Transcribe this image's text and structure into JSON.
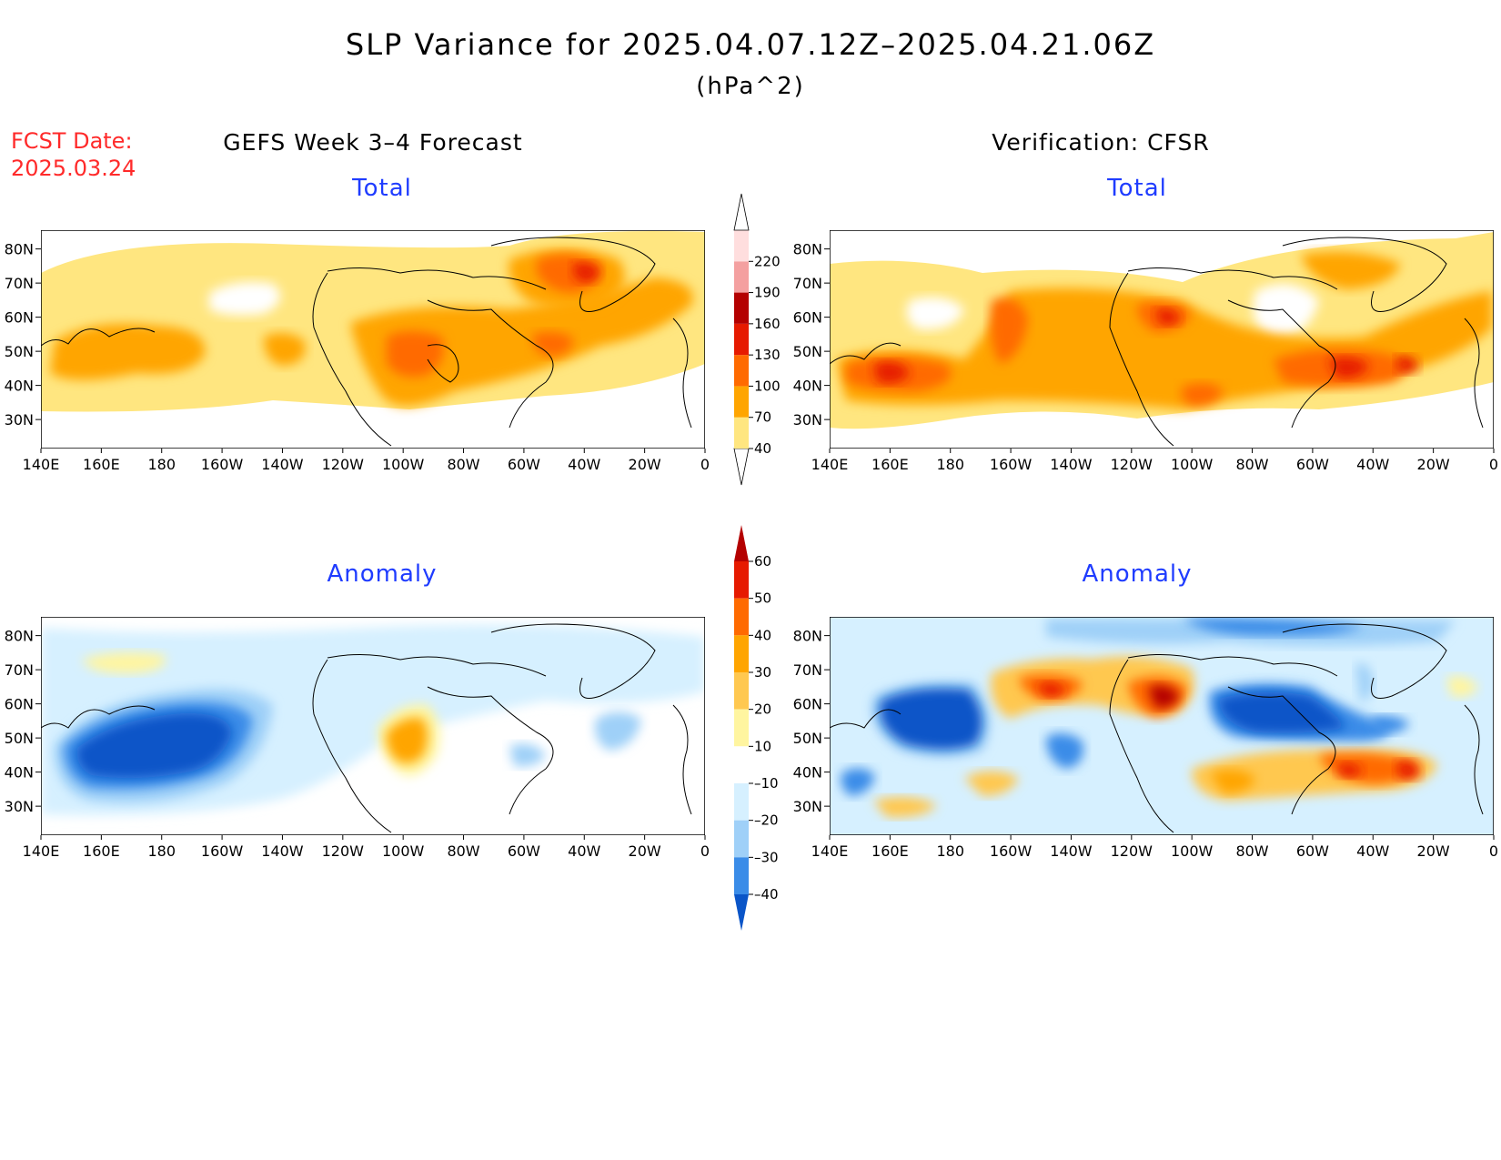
{
  "title": "SLP Variance for 2025.04.07.12Z–2025.04.21.06Z",
  "units": "(hPa^2)",
  "fcst": {
    "label": "FCST Date:",
    "date": "2025.03.24"
  },
  "headers": {
    "left": "GEFS Week 3–4 Forecast",
    "right": "Verification: CFSR"
  },
  "subtitles": {
    "total": "Total",
    "anomaly": "Anomaly"
  },
  "lat_labels": [
    "80N",
    "70N",
    "60N",
    "50N",
    "40N",
    "30N"
  ],
  "lon_labels": [
    "140E",
    "160E",
    "180",
    "160W",
    "140W",
    "120W",
    "100W",
    "80W",
    "60W",
    "40W",
    "20W",
    "0"
  ],
  "colorbar_total": {
    "levels": [
      "40",
      "70",
      "100",
      "130",
      "160",
      "190",
      "220"
    ],
    "colors": [
      "#ffe680",
      "#ffa500",
      "#ff6a00",
      "#e61a00",
      "#b40000",
      "#f4a0a0",
      "#ffdede"
    ]
  },
  "colorbar_anomaly": {
    "levels": [
      "60",
      "50",
      "40",
      "30",
      "20",
      "10",
      "–10",
      "–20",
      "–30",
      "–40"
    ],
    "colors": [
      "#b40000",
      "#e61a00",
      "#ff6a00",
      "#ffa500",
      "#ffc850",
      "#fff5a0",
      "#ffffff",
      "#d6f0ff",
      "#9fd0f8",
      "#3a8ce8",
      "#0a55c8"
    ]
  }
}
